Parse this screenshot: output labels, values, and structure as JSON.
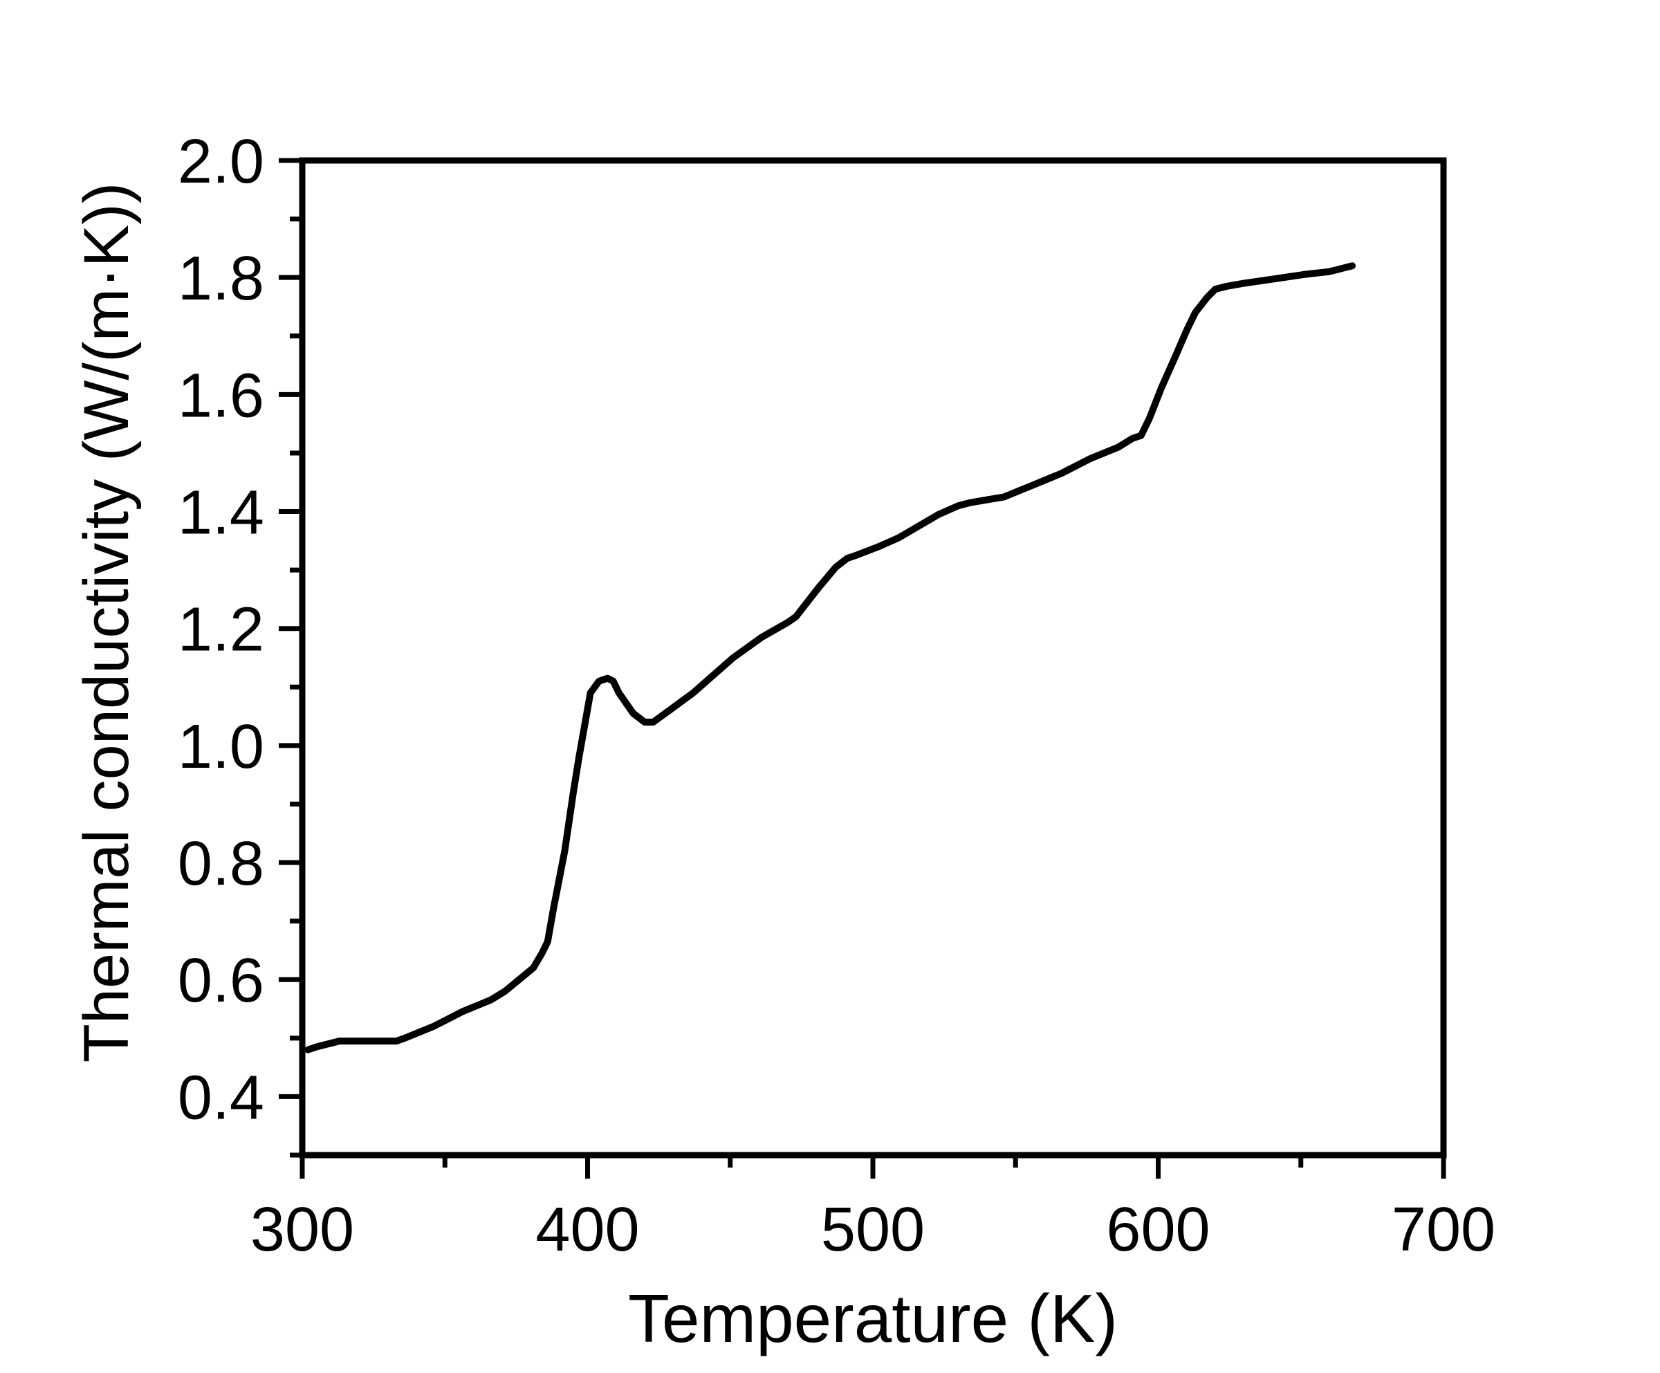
{
  "chart_data": {
    "type": "line",
    "title": "",
    "xlabel": "Temperature (K)",
    "ylabel": "Thermal conductivity (W/(m·K))",
    "xlim": [
      300,
      700
    ],
    "ylim": [
      0.3,
      2.0
    ],
    "xticks": [
      300,
      400,
      500,
      600,
      700
    ],
    "xtick_labels": [
      "300",
      "400",
      "500",
      "600",
      "700"
    ],
    "yticks": [
      0.4,
      0.6,
      0.8,
      1.0,
      1.2,
      1.4,
      1.6,
      1.8,
      2.0
    ],
    "ytick_labels": [
      "0.4",
      "0.6",
      "0.8",
      "1.0",
      "1.2",
      "1.4",
      "1.6",
      "1.8",
      "2.0"
    ],
    "grid": false,
    "legend": "none",
    "line_color": "#000000",
    "series": [
      {
        "x": [
          302,
          305,
          313,
          320,
          333,
          336,
          346,
          356,
          366,
          371,
          381,
          384,
          386,
          388,
          392,
          395,
          397,
          401,
          404,
          407,
          409,
          411,
          416,
          420,
          423,
          430,
          437,
          444,
          451,
          461,
          470,
          473,
          481,
          487,
          491,
          494,
          502,
          509,
          516,
          523,
          530,
          534,
          540,
          546,
          551,
          556,
          566,
          576,
          586,
          591,
          594,
          597,
          601,
          606,
          610,
          613,
          617,
          620,
          624,
          630,
          637,
          644,
          651,
          660,
          668
        ],
        "values": [
          0.48,
          0.485,
          0.495,
          0.495,
          0.495,
          0.5,
          0.52,
          0.545,
          0.565,
          0.58,
          0.62,
          0.645,
          0.665,
          0.72,
          0.82,
          0.92,
          0.98,
          1.09,
          1.11,
          1.115,
          1.11,
          1.09,
          1.055,
          1.04,
          1.04,
          1.065,
          1.09,
          1.12,
          1.15,
          1.185,
          1.21,
          1.22,
          1.27,
          1.305,
          1.32,
          1.325,
          1.34,
          1.355,
          1.375,
          1.395,
          1.41,
          1.415,
          1.42,
          1.425,
          1.435,
          1.445,
          1.465,
          1.49,
          1.51,
          1.525,
          1.53,
          1.56,
          1.61,
          1.665,
          1.71,
          1.74,
          1.765,
          1.78,
          1.785,
          1.79,
          1.795,
          1.8,
          1.805,
          1.81,
          1.82
        ]
      }
    ]
  }
}
